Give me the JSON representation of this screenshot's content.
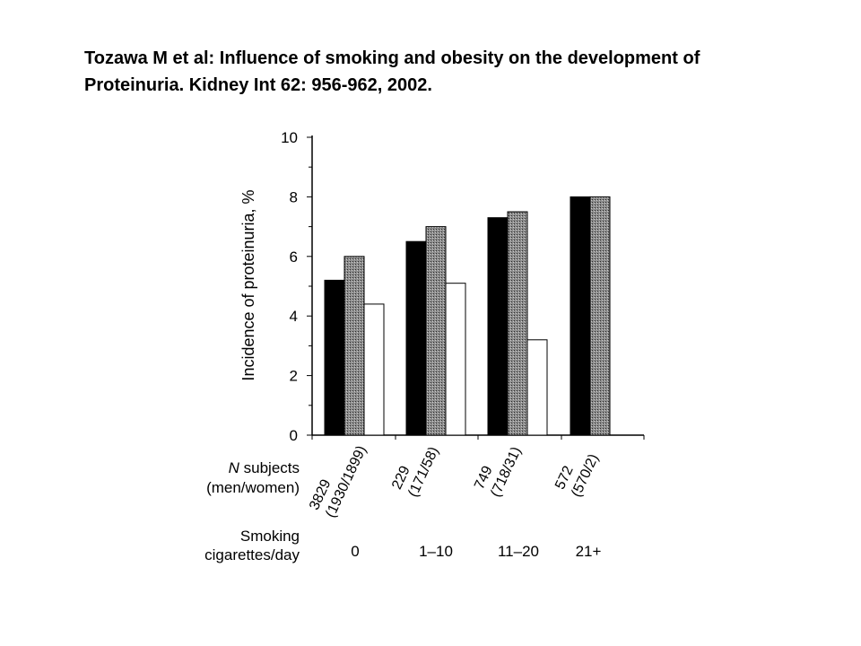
{
  "citation": {
    "line1": "Tozawa M et al: Influence of smoking and obesity on the development of",
    "line2": "Proteinuria. Kidney Int 62: 956-962, 2002."
  },
  "chart_data": {
    "type": "bar",
    "title": "",
    "xlabel": "",
    "ylabel": "Incidence of proteinuria, %",
    "ylim": [
      0,
      10
    ],
    "yticks": [
      "0",
      "2",
      "4",
      "6",
      "8",
      "10"
    ],
    "grid": false,
    "categories": [
      "0",
      "1–10",
      "11–20",
      "21+"
    ],
    "series": [
      {
        "name": "black",
        "fill": "#000000",
        "values": [
          5.2,
          6.5,
          7.3,
          8.0
        ]
      },
      {
        "name": "hatched",
        "fill": "#8c8c8c",
        "values": [
          6.0,
          7.0,
          7.5,
          8.0
        ]
      },
      {
        "name": "white",
        "fill": "#ffffff",
        "values": [
          4.4,
          5.1,
          3.2,
          null
        ]
      }
    ],
    "n_label_line1_prefix": "N",
    "n_label_line1_rest": " subjects",
    "n_label_line2": "(men/women)",
    "n_counts": [
      {
        "total": "3829",
        "split": "(1930/1899)"
      },
      {
        "total": "229",
        "split": "(171/58)"
      },
      {
        "total": "749",
        "split": "(718/31)"
      },
      {
        "total": "572",
        "split": "(570/2)"
      }
    ],
    "smoking_label_line1": "Smoking",
    "smoking_label_line2": "cigarettes/day"
  }
}
